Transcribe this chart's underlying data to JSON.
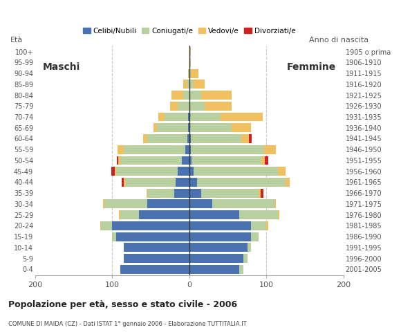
{
  "age_groups": [
    "0-4",
    "5-9",
    "10-14",
    "15-19",
    "20-24",
    "25-29",
    "30-34",
    "35-39",
    "40-44",
    "45-49",
    "50-54",
    "55-59",
    "60-64",
    "65-69",
    "70-74",
    "75-79",
    "80-84",
    "85-89",
    "90-94",
    "95-99",
    "100+"
  ],
  "birth_years": [
    "2001-2005",
    "1996-2000",
    "1991-1995",
    "1986-1990",
    "1981-1985",
    "1976-1980",
    "1971-1975",
    "1966-1970",
    "1961-1965",
    "1956-1960",
    "1951-1955",
    "1946-1950",
    "1941-1945",
    "1936-1940",
    "1931-1935",
    "1926-1930",
    "1921-1925",
    "1916-1920",
    "1911-1915",
    "1906-1910",
    "1905 o prima"
  ],
  "male": {
    "celibi": [
      90,
      85,
      85,
      95,
      100,
      65,
      55,
      20,
      18,
      15,
      10,
      5,
      3,
      2,
      2,
      0,
      0,
      0,
      0,
      0,
      0
    ],
    "coniugati": [
      0,
      0,
      0,
      5,
      15,
      25,
      55,
      35,
      65,
      80,
      80,
      80,
      52,
      40,
      30,
      15,
      8,
      3,
      1,
      0,
      0
    ],
    "vedovi": [
      0,
      0,
      0,
      0,
      1,
      1,
      2,
      1,
      2,
      2,
      2,
      8,
      5,
      5,
      8,
      10,
      15,
      5,
      1,
      0,
      0
    ],
    "divorziati": [
      0,
      0,
      0,
      0,
      0,
      0,
      0,
      0,
      3,
      4,
      2,
      0,
      0,
      0,
      0,
      0,
      0,
      0,
      0,
      0,
      0
    ]
  },
  "female": {
    "celibi": [
      65,
      70,
      75,
      80,
      80,
      65,
      30,
      15,
      10,
      5,
      3,
      2,
      2,
      0,
      0,
      0,
      0,
      0,
      0,
      0,
      0
    ],
    "coniugati": [
      5,
      5,
      5,
      10,
      20,
      50,
      80,
      75,
      115,
      110,
      90,
      95,
      65,
      55,
      40,
      20,
      15,
      5,
      2,
      0,
      0
    ],
    "vedovi": [
      0,
      0,
      0,
      0,
      2,
      2,
      2,
      2,
      5,
      10,
      5,
      15,
      10,
      25,
      55,
      35,
      40,
      15,
      10,
      2,
      2
    ],
    "divorziati": [
      0,
      0,
      0,
      0,
      0,
      0,
      0,
      4,
      0,
      0,
      4,
      0,
      4,
      0,
      0,
      0,
      0,
      0,
      0,
      0,
      0
    ]
  },
  "colors": {
    "celibi": "#4a72b0",
    "coniugati": "#b8cfa0",
    "vedovi": "#f0c060",
    "divorziati": "#cc2222"
  },
  "title": "Popolazione per età, sesso e stato civile - 2006",
  "subtitle": "COMUNE DI MAIDA (CZ) - Dati ISTAT 1° gennaio 2006 - Elaborazione TUTTITALIA.IT",
  "xlabel_left": "Maschi",
  "xlabel_right": "Femmine",
  "ylabel_left": "Età",
  "ylabel_right": "Anno di nascita",
  "xlim": 200,
  "background_color": "#ffffff",
  "grid_color": "#c8c8c8"
}
